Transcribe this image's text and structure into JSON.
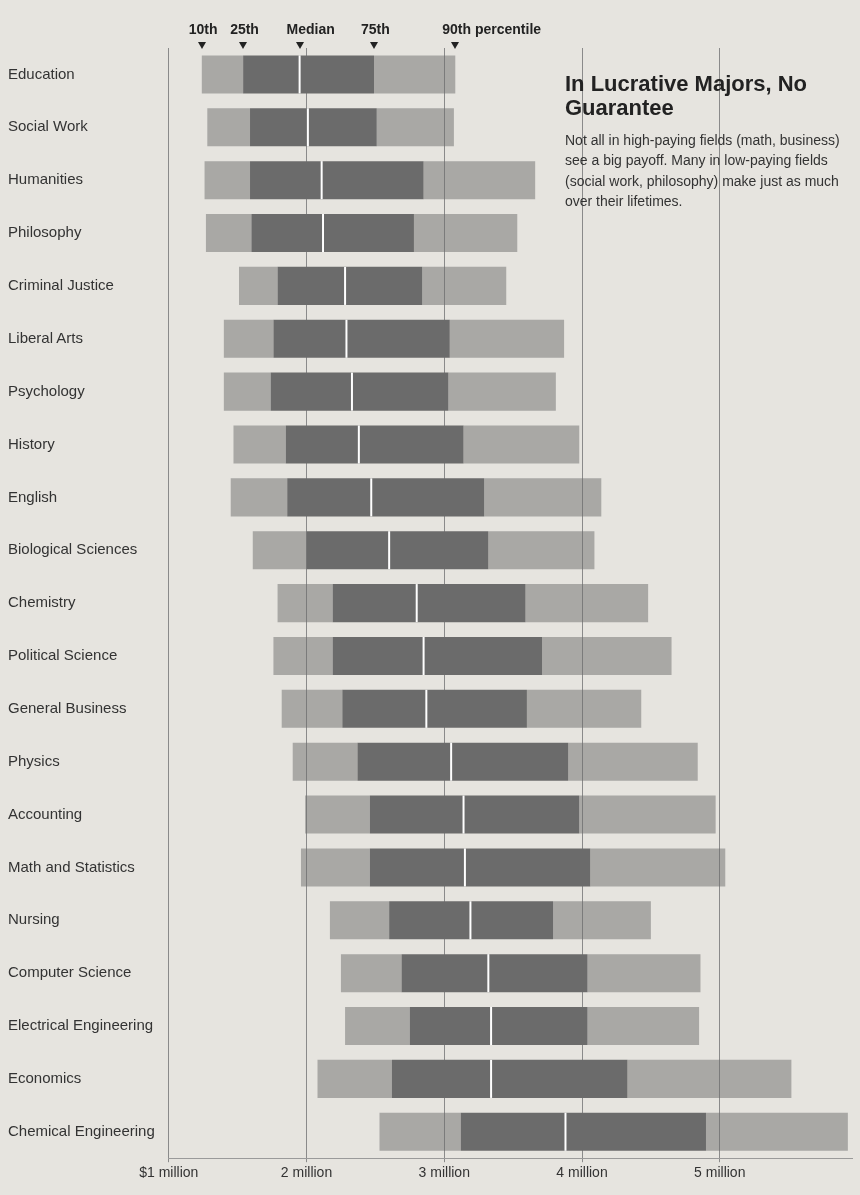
{
  "chart_data": {
    "type": "box",
    "orientation": "horizontal",
    "title": "In Lucrative Majors, No Guarantee",
    "subtitle": "Not all in high-paying fields (math, business) see a big payoff. Many in low-paying fields (social work, philosophy) make just as much over their lifetimes.",
    "categories": [
      "Education",
      "Social Work",
      "Humanities",
      "Philosophy",
      "Criminal Justice",
      "Liberal Arts",
      "Psychology",
      "History",
      "English",
      "Biological Sciences",
      "Chemistry",
      "Political Science",
      "General Business",
      "Physics",
      "Accounting",
      "Math and Statistics",
      "Nursing",
      "Computer Science",
      "Electrical Engineering",
      "Economics",
      "Chemical Engineering"
    ],
    "series": [
      {
        "color": "#6b6b6b",
        "boxes": [
          {
            "low": 1.24,
            "q1": 1.54,
            "median": 1.95,
            "q3": 2.49,
            "high": 3.08
          },
          {
            "low": 1.28,
            "q1": 1.59,
            "median": 2.01,
            "q3": 2.51,
            "high": 3.07
          },
          {
            "low": 1.26,
            "q1": 1.59,
            "median": 2.11,
            "q3": 2.85,
            "high": 3.66
          },
          {
            "low": 1.27,
            "q1": 1.6,
            "median": 2.12,
            "q3": 2.78,
            "high": 3.53
          },
          {
            "low": 1.51,
            "q1": 1.79,
            "median": 2.28,
            "q3": 2.84,
            "high": 3.45
          },
          {
            "low": 1.4,
            "q1": 1.76,
            "median": 2.29,
            "q3": 3.04,
            "high": 3.87
          },
          {
            "low": 1.4,
            "q1": 1.74,
            "median": 2.33,
            "q3": 3.03,
            "high": 3.81
          },
          {
            "low": 1.47,
            "q1": 1.85,
            "median": 2.38,
            "q3": 3.14,
            "high": 3.98
          },
          {
            "low": 1.45,
            "q1": 1.86,
            "median": 2.47,
            "q3": 3.29,
            "high": 4.14
          },
          {
            "low": 1.61,
            "q1": 2.0,
            "median": 2.6,
            "q3": 3.32,
            "high": 4.09
          },
          {
            "low": 1.79,
            "q1": 2.19,
            "median": 2.8,
            "q3": 3.59,
            "high": 4.48
          },
          {
            "low": 1.76,
            "q1": 2.19,
            "median": 2.85,
            "q3": 3.71,
            "high": 4.65
          },
          {
            "low": 1.82,
            "q1": 2.26,
            "median": 2.87,
            "q3": 3.6,
            "high": 4.43
          },
          {
            "low": 1.9,
            "q1": 2.37,
            "median": 3.05,
            "q3": 3.9,
            "high": 4.84
          },
          {
            "low": 1.99,
            "q1": 2.46,
            "median": 3.14,
            "q3": 3.98,
            "high": 4.97
          },
          {
            "low": 1.96,
            "q1": 2.46,
            "median": 3.15,
            "q3": 4.06,
            "high": 5.04
          },
          {
            "low": 2.17,
            "q1": 2.6,
            "median": 3.19,
            "q3": 3.79,
            "high": 4.5
          },
          {
            "low": 2.25,
            "q1": 2.69,
            "median": 3.32,
            "q3": 4.04,
            "high": 4.86
          },
          {
            "low": 2.28,
            "q1": 2.75,
            "median": 3.34,
            "q3": 4.04,
            "high": 4.85
          },
          {
            "low": 2.08,
            "q1": 2.62,
            "median": 3.34,
            "q3": 4.33,
            "high": 5.52
          },
          {
            "low": 2.53,
            "q1": 3.12,
            "median": 3.88,
            "q3": 4.9,
            "high": 5.93
          }
        ]
      }
    ],
    "xlim": [
      1,
      5.96
    ],
    "xticks": [
      {
        "value": 1,
        "label": "$1 million"
      },
      {
        "value": 2,
        "label": "2 million"
      },
      {
        "value": 3,
        "label": "3 million"
      },
      {
        "value": 4,
        "label": "4 million"
      },
      {
        "value": 5,
        "label": "5 million"
      }
    ],
    "grid": "x",
    "legend": false,
    "annotations": [
      "10th",
      "25th",
      "Median",
      "75th",
      "90th percentile"
    ]
  }
}
